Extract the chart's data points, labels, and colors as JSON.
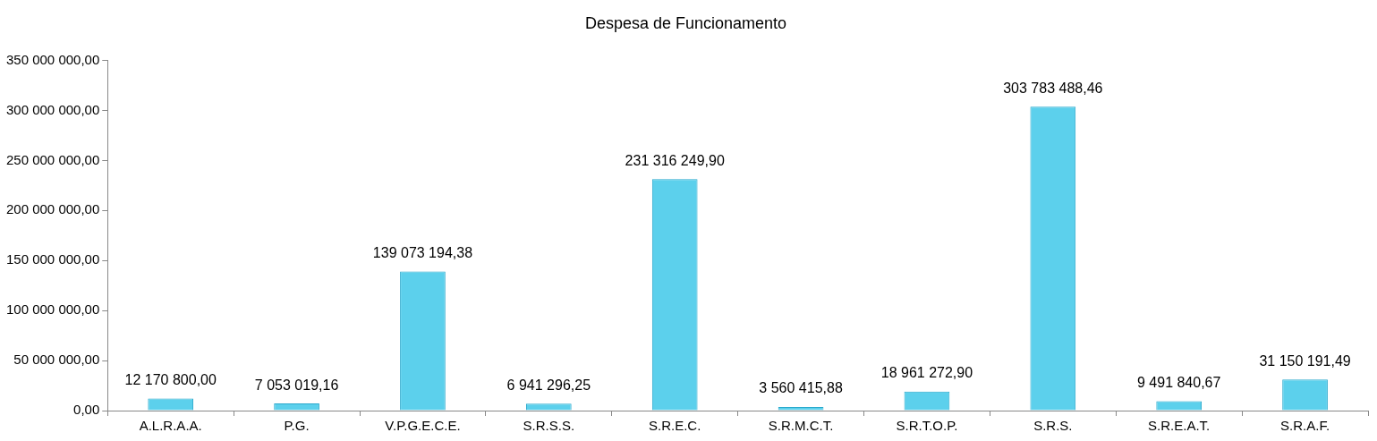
{
  "chart_data": {
    "type": "bar",
    "title": "Despesa de Funcionamento",
    "categories": [
      "A.L.R.A.A.",
      "P.G.",
      "V.P.G.E.C.E.",
      "S.R.S.S.",
      "S.R.E.C.",
      "S.R.M.C.T.",
      "S.R.T.O.P.",
      "S.R.S.",
      "S.R.E.A.T.",
      "S.R.A.F."
    ],
    "values": [
      12170800.0,
      7053019.16,
      139073194.38,
      6941296.25,
      231316249.9,
      3560415.88,
      18961272.9,
      303783488.46,
      9491840.67,
      31150191.49
    ],
    "value_labels": [
      "12 170 800,00",
      "7 053 019,16",
      "139 073 194,38",
      "6 941 296,25",
      "231 316 249,90",
      "3 560 415,88",
      "18 961 272,90",
      "303 783 488,46",
      "9 491 840,67",
      "31 150 191,49"
    ],
    "color": "#5cd0ec",
    "ylim": [
      0,
      350000000
    ],
    "yticks": [
      {
        "value": 0,
        "label": "0,00"
      },
      {
        "value": 50000000,
        "label": "50 000 000,00"
      },
      {
        "value": 100000000,
        "label": "100 000 000,00"
      },
      {
        "value": 150000000,
        "label": "150 000 000,00"
      },
      {
        "value": 200000000,
        "label": "200 000 000,00"
      },
      {
        "value": 250000000,
        "label": "250 000 000,00"
      },
      {
        "value": 300000000,
        "label": "300 000 000,00"
      },
      {
        "value": 350000000,
        "label": "350 000 000,00"
      }
    ],
    "grid": false,
    "legend": false
  }
}
